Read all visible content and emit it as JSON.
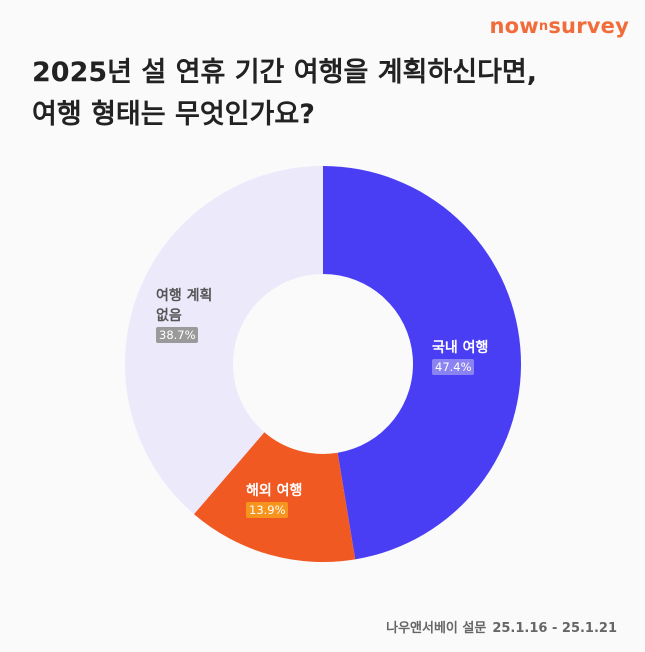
{
  "brand": {
    "logo_main": "now",
    "logo_sup": "n",
    "logo_tail": "survey"
  },
  "title_lines": [
    "2025년 설 연휴 기간 여행을 계획하신다면,",
    "여행 형태는 무엇인가요?"
  ],
  "source": {
    "label": "나우앤서베이 설문",
    "date_range": "25.1.16 - 25.1.21"
  },
  "chart_data": {
    "type": "pie",
    "variant": "donut",
    "title": "2025년 설 연휴 기간 여행을 계획하신다면, 여행 형태는 무엇인가요?",
    "start_angle_deg": 0,
    "direction": "clockwise",
    "slices": [
      {
        "label_lines": [
          "국내 여행"
        ],
        "value": 47.4,
        "value_label": "47.4%",
        "color": "#4a3ef5",
        "text_color": "#ffffff",
        "badge_color": "#8c83f3",
        "badge_text_color": "#ffffff"
      },
      {
        "label_lines": [
          "해외 여행"
        ],
        "value": 13.9,
        "value_label": "13.9%",
        "color": "#f05a22",
        "text_color": "#ffffff",
        "badge_color": "#f7941d",
        "badge_text_color": "#ffffff"
      },
      {
        "label_lines": [
          "여행 계획",
          "없음"
        ],
        "value": 38.7,
        "value_label": "38.7%",
        "color": "#ece9fb",
        "text_color": "#555555",
        "badge_color": "#9a9a9a",
        "badge_text_color": "#ffffff"
      }
    ]
  }
}
